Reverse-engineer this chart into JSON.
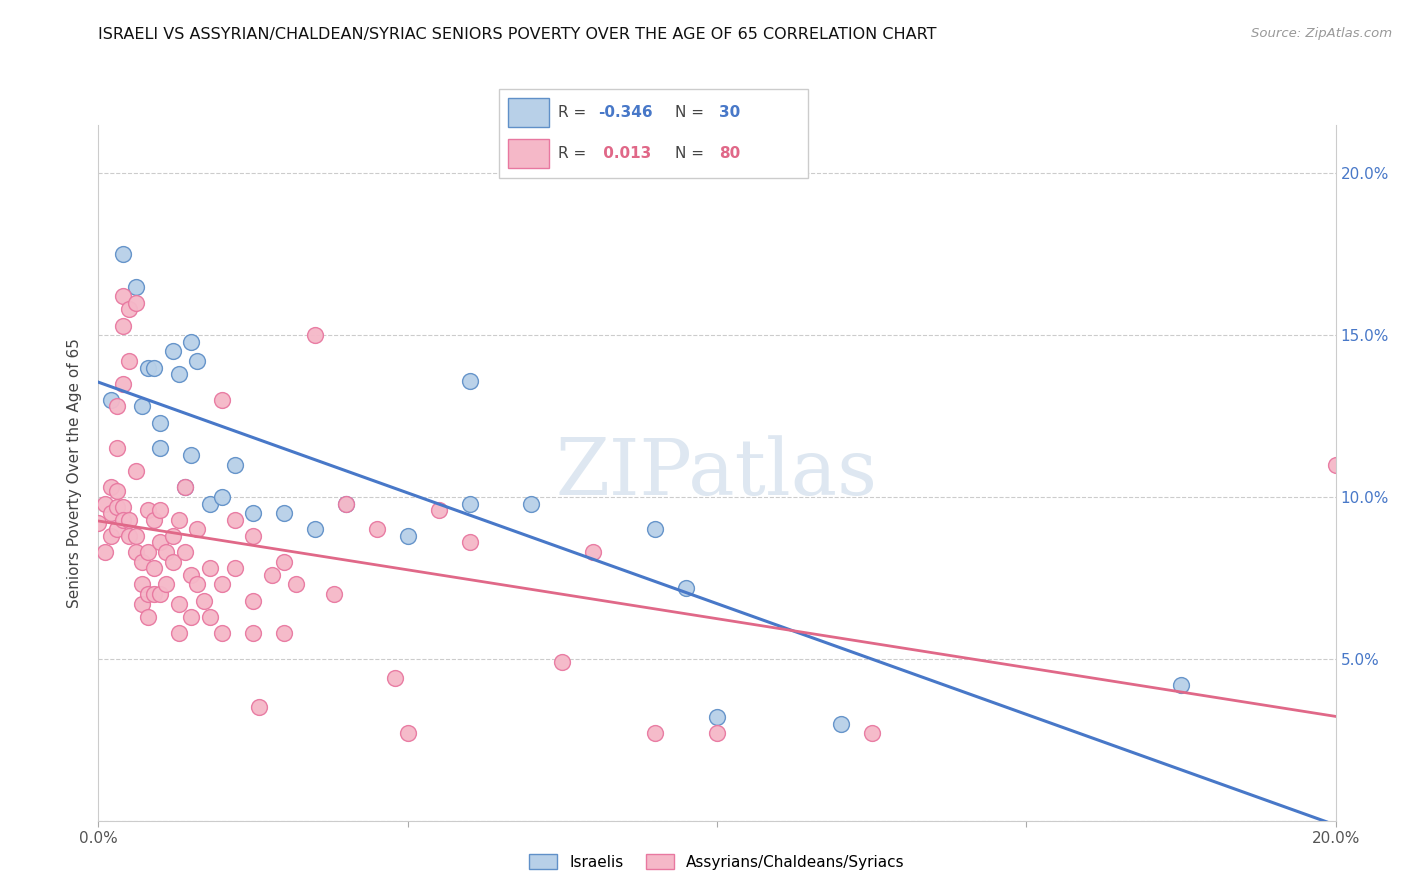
{
  "title": "ISRAELI VS ASSYRIAN/CHALDEAN/SYRIAC SENIORS POVERTY OVER THE AGE OF 65 CORRELATION CHART",
  "source": "Source: ZipAtlas.com",
  "ylabel": "Seniors Poverty Over the Age of 65",
  "xlim": [
    0.0,
    0.2
  ],
  "ylim": [
    0.0,
    0.215
  ],
  "legend_r_blue": "-0.346",
  "legend_n_blue": "30",
  "legend_r_pink": "0.013",
  "legend_n_pink": "80",
  "blue_fill": "#b8d0e8",
  "pink_fill": "#f5b8c8",
  "blue_edge": "#6090c8",
  "pink_edge": "#e878a0",
  "blue_line": "#4878c8",
  "pink_line": "#e06888",
  "watermark_color": "#c8d8e8",
  "blue_points": [
    [
      0.002,
      0.13
    ],
    [
      0.004,
      0.175
    ],
    [
      0.006,
      0.165
    ],
    [
      0.007,
      0.128
    ],
    [
      0.008,
      0.14
    ],
    [
      0.009,
      0.14
    ],
    [
      0.01,
      0.123
    ],
    [
      0.01,
      0.115
    ],
    [
      0.012,
      0.145
    ],
    [
      0.013,
      0.138
    ],
    [
      0.014,
      0.103
    ],
    [
      0.015,
      0.113
    ],
    [
      0.015,
      0.148
    ],
    [
      0.016,
      0.142
    ],
    [
      0.018,
      0.098
    ],
    [
      0.02,
      0.1
    ],
    [
      0.022,
      0.11
    ],
    [
      0.025,
      0.095
    ],
    [
      0.03,
      0.095
    ],
    [
      0.035,
      0.09
    ],
    [
      0.04,
      0.098
    ],
    [
      0.05,
      0.088
    ],
    [
      0.06,
      0.136
    ],
    [
      0.06,
      0.098
    ],
    [
      0.07,
      0.098
    ],
    [
      0.09,
      0.09
    ],
    [
      0.095,
      0.072
    ],
    [
      0.1,
      0.032
    ],
    [
      0.12,
      0.03
    ],
    [
      0.175,
      0.042
    ]
  ],
  "pink_points": [
    [
      0.0,
      0.092
    ],
    [
      0.001,
      0.098
    ],
    [
      0.001,
      0.083
    ],
    [
      0.002,
      0.103
    ],
    [
      0.002,
      0.095
    ],
    [
      0.002,
      0.088
    ],
    [
      0.003,
      0.128
    ],
    [
      0.003,
      0.115
    ],
    [
      0.003,
      0.102
    ],
    [
      0.003,
      0.097
    ],
    [
      0.003,
      0.09
    ],
    [
      0.004,
      0.162
    ],
    [
      0.004,
      0.153
    ],
    [
      0.004,
      0.135
    ],
    [
      0.004,
      0.097
    ],
    [
      0.004,
      0.093
    ],
    [
      0.005,
      0.158
    ],
    [
      0.005,
      0.142
    ],
    [
      0.005,
      0.093
    ],
    [
      0.005,
      0.088
    ],
    [
      0.006,
      0.16
    ],
    [
      0.006,
      0.108
    ],
    [
      0.006,
      0.088
    ],
    [
      0.006,
      0.083
    ],
    [
      0.007,
      0.08
    ],
    [
      0.007,
      0.073
    ],
    [
      0.007,
      0.067
    ],
    [
      0.008,
      0.096
    ],
    [
      0.008,
      0.083
    ],
    [
      0.008,
      0.07
    ],
    [
      0.008,
      0.063
    ],
    [
      0.009,
      0.093
    ],
    [
      0.009,
      0.078
    ],
    [
      0.009,
      0.07
    ],
    [
      0.01,
      0.096
    ],
    [
      0.01,
      0.086
    ],
    [
      0.01,
      0.07
    ],
    [
      0.011,
      0.083
    ],
    [
      0.011,
      0.073
    ],
    [
      0.012,
      0.088
    ],
    [
      0.012,
      0.08
    ],
    [
      0.013,
      0.093
    ],
    [
      0.013,
      0.067
    ],
    [
      0.013,
      0.058
    ],
    [
      0.014,
      0.103
    ],
    [
      0.014,
      0.083
    ],
    [
      0.015,
      0.076
    ],
    [
      0.015,
      0.063
    ],
    [
      0.016,
      0.09
    ],
    [
      0.016,
      0.073
    ],
    [
      0.017,
      0.068
    ],
    [
      0.018,
      0.078
    ],
    [
      0.018,
      0.063
    ],
    [
      0.02,
      0.13
    ],
    [
      0.02,
      0.073
    ],
    [
      0.02,
      0.058
    ],
    [
      0.022,
      0.093
    ],
    [
      0.022,
      0.078
    ],
    [
      0.025,
      0.088
    ],
    [
      0.025,
      0.068
    ],
    [
      0.025,
      0.058
    ],
    [
      0.026,
      0.035
    ],
    [
      0.028,
      0.076
    ],
    [
      0.03,
      0.08
    ],
    [
      0.03,
      0.058
    ],
    [
      0.032,
      0.073
    ],
    [
      0.035,
      0.15
    ],
    [
      0.038,
      0.07
    ],
    [
      0.04,
      0.098
    ],
    [
      0.045,
      0.09
    ],
    [
      0.048,
      0.044
    ],
    [
      0.05,
      0.027
    ],
    [
      0.055,
      0.096
    ],
    [
      0.06,
      0.086
    ],
    [
      0.075,
      0.049
    ],
    [
      0.08,
      0.083
    ],
    [
      0.09,
      0.027
    ],
    [
      0.1,
      0.027
    ],
    [
      0.125,
      0.027
    ],
    [
      0.2,
      0.11
    ]
  ]
}
